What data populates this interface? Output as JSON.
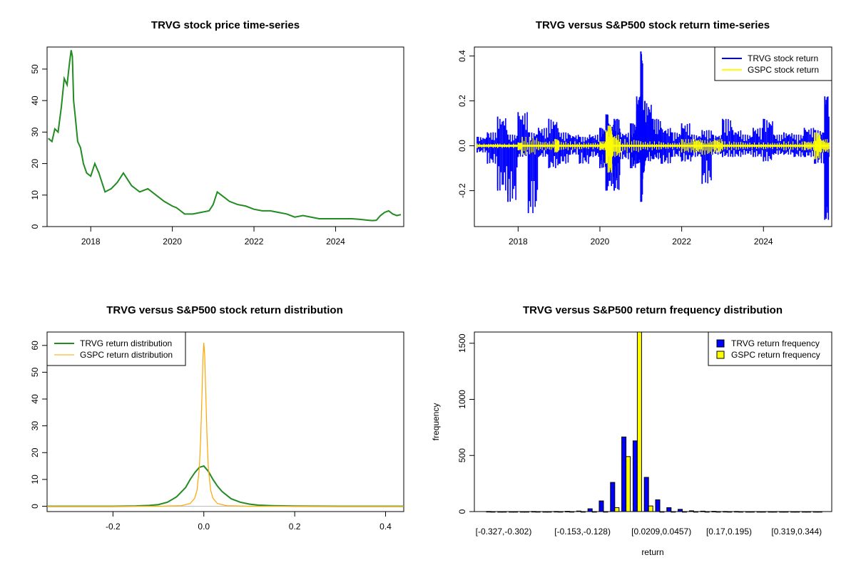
{
  "chart_data": [
    {
      "type": "line",
      "title": "TRVG stock price time-series",
      "xlabel": "",
      "ylabel": "",
      "xlim": [
        2016.93,
        2025.67
      ],
      "ylim": [
        0,
        57
      ],
      "x_ticks": [
        "2018",
        "2020",
        "2022",
        "2024"
      ],
      "y_ticks": [
        "0",
        "10",
        "20",
        "30",
        "40",
        "50"
      ],
      "series": [
        {
          "color": "#228B22",
          "x": [
            2016.96,
            2017.05,
            2017.12,
            2017.2,
            2017.28,
            2017.35,
            2017.42,
            2017.48,
            2017.52,
            2017.55,
            2017.58,
            2017.62,
            2017.68,
            2017.75,
            2017.82,
            2017.9,
            2018.0,
            2018.1,
            2018.2,
            2018.35,
            2018.5,
            2018.65,
            2018.8,
            2019.0,
            2019.2,
            2019.4,
            2019.6,
            2019.8,
            2020.0,
            2020.1,
            2020.2,
            2020.3,
            2020.5,
            2020.7,
            2020.9,
            2021.0,
            2021.1,
            2021.2,
            2021.4,
            2021.6,
            2021.8,
            2022.0,
            2022.2,
            2022.4,
            2022.6,
            2022.8,
            2023.0,
            2023.2,
            2023.4,
            2023.6,
            2023.8,
            2024.0,
            2024.2,
            2024.4,
            2024.6,
            2024.8,
            2024.9,
            2025.0,
            2025.1,
            2025.2,
            2025.3,
            2025.4,
            2025.5,
            2025.6
          ],
          "y": [
            28,
            27,
            31,
            30,
            38,
            47,
            45,
            52,
            56,
            54,
            40,
            35,
            27,
            25,
            20,
            17,
            16,
            20,
            17,
            11,
            12,
            14,
            17,
            13,
            11,
            12,
            10,
            8,
            6.5,
            6,
            5,
            4,
            4,
            4.5,
            5,
            7,
            11,
            10,
            8,
            7,
            6.5,
            5.5,
            5,
            5,
            4.5,
            4,
            3,
            3.5,
            3,
            2.5,
            2.5,
            2.5,
            2.5,
            2.5,
            2.3,
            2,
            1.9,
            2,
            3.5,
            4.5,
            5,
            4,
            3.5,
            3.8
          ]
        }
      ]
    },
    {
      "type": "line",
      "title": "TRVG versus S&P500 stock return time-series",
      "xlabel": "",
      "ylabel": "",
      "xlim": [
        2016.93,
        2025.67
      ],
      "ylim": [
        -0.36,
        0.44
      ],
      "x_ticks": [
        "2018",
        "2020",
        "2022",
        "2024"
      ],
      "y_ticks": [
        "-0.2",
        "0.0",
        "0.2",
        "0.4"
      ],
      "legend": "top-right",
      "series": [
        {
          "name": "TRVG stock return",
          "color": "#0000FF",
          "x": [
            2017.0,
            2017.25,
            2017.5,
            2017.75,
            2018.0,
            2018.25,
            2018.5,
            2018.75,
            2019.0,
            2019.25,
            2019.5,
            2019.75,
            2020.0,
            2020.15,
            2020.2,
            2020.35,
            2020.5,
            2020.75,
            2020.9,
            2021.0,
            2021.05,
            2021.1,
            2021.3,
            2021.5,
            2021.75,
            2022.0,
            2022.25,
            2022.5,
            2022.75,
            2023.0,
            2023.25,
            2023.5,
            2023.75,
            2024.0,
            2024.25,
            2024.5,
            2024.75,
            2025.0,
            2025.25,
            2025.5,
            2025.6
          ],
          "y_high": [
            0.04,
            0.06,
            0.13,
            0.05,
            0.15,
            0.06,
            0.08,
            0.12,
            0.06,
            0.05,
            0.04,
            0.05,
            0.08,
            0.14,
            0.1,
            0.12,
            0.06,
            0.1,
            0.22,
            0.42,
            0.16,
            0.2,
            0.12,
            0.08,
            0.06,
            0.1,
            0.05,
            0.07,
            0.05,
            0.12,
            0.07,
            0.05,
            0.08,
            0.12,
            0.05,
            0.06,
            0.05,
            0.08,
            0.07,
            0.22,
            0.13
          ],
          "y_low": [
            -0.03,
            -0.08,
            -0.2,
            -0.25,
            -0.05,
            -0.3,
            -0.05,
            -0.1,
            -0.08,
            -0.04,
            -0.08,
            -0.05,
            -0.1,
            -0.2,
            -0.18,
            -0.2,
            -0.06,
            -0.1,
            -0.08,
            -0.25,
            -0.12,
            -0.07,
            -0.06,
            -0.08,
            -0.05,
            -0.07,
            -0.05,
            -0.17,
            -0.04,
            -0.05,
            -0.05,
            -0.04,
            -0.05,
            -0.07,
            -0.04,
            -0.04,
            -0.05,
            -0.05,
            -0.08,
            -0.33,
            -0.05
          ]
        },
        {
          "name": "GSPC stock return",
          "color": "#FFFF00",
          "x": [
            2017.0,
            2017.5,
            2018.0,
            2018.1,
            2018.5,
            2018.9,
            2019.0,
            2019.5,
            2020.0,
            2020.15,
            2020.2,
            2020.3,
            2020.5,
            2021.0,
            2021.5,
            2022.0,
            2022.3,
            2022.5,
            2022.8,
            2023.0,
            2023.5,
            2024.0,
            2024.5,
            2025.0,
            2025.25,
            2025.4,
            2025.6
          ],
          "y_high": [
            0.01,
            0.01,
            0.015,
            0.04,
            0.02,
            0.03,
            0.02,
            0.015,
            0.02,
            0.07,
            0.09,
            0.05,
            0.03,
            0.02,
            0.015,
            0.03,
            0.03,
            0.025,
            0.03,
            0.02,
            0.015,
            0.015,
            0.02,
            0.02,
            0.06,
            0.03,
            0.015
          ],
          "y_low": [
            -0.01,
            -0.01,
            -0.02,
            -0.04,
            -0.02,
            -0.03,
            -0.02,
            -0.015,
            -0.02,
            -0.08,
            -0.12,
            -0.05,
            -0.03,
            -0.02,
            -0.015,
            -0.03,
            -0.03,
            -0.04,
            -0.03,
            -0.02,
            -0.015,
            -0.015,
            -0.02,
            -0.02,
            -0.06,
            -0.03,
            -0.015
          ]
        }
      ]
    },
    {
      "type": "line",
      "title": "TRVG versus S&P500 stock return distribution",
      "xlabel": "",
      "ylabel": "",
      "xlim": [
        -0.345,
        0.44
      ],
      "ylim": [
        -2,
        65
      ],
      "x_ticks": [
        "-0.2",
        "0.0",
        "0.2",
        "0.4"
      ],
      "y_ticks": [
        "0",
        "10",
        "20",
        "30",
        "40",
        "50",
        "60"
      ],
      "legend": "top-left",
      "series": [
        {
          "name": "TRVG return distribution",
          "color": "#228B22",
          "x": [
            -0.345,
            -0.2,
            -0.15,
            -0.12,
            -0.1,
            -0.08,
            -0.06,
            -0.04,
            -0.03,
            -0.02,
            -0.01,
            0.0,
            0.01,
            0.02,
            0.03,
            0.04,
            0.06,
            0.08,
            0.1,
            0.12,
            0.15,
            0.2,
            0.3,
            0.44
          ],
          "y": [
            0,
            0,
            0.1,
            0.3,
            0.6,
            1.5,
            3.5,
            7,
            10,
            12.5,
            14.5,
            15,
            13,
            10,
            7.5,
            5.5,
            2.8,
            1.5,
            0.8,
            0.4,
            0.2,
            0.05,
            0,
            0
          ]
        },
        {
          "name": "GSPC return distribution",
          "color": "#FFA500",
          "x": [
            -0.345,
            -0.1,
            -0.05,
            -0.03,
            -0.02,
            -0.015,
            -0.01,
            -0.007,
            -0.004,
            -0.002,
            0.0,
            0.002,
            0.004,
            0.007,
            0.01,
            0.015,
            0.02,
            0.03,
            0.05,
            0.1,
            0.44
          ],
          "y": [
            0,
            0,
            0.2,
            1,
            3,
            6,
            14,
            25,
            42,
            55,
            61,
            56,
            44,
            26,
            14,
            6,
            3,
            1,
            0.2,
            0,
            0
          ]
        }
      ]
    },
    {
      "type": "bar",
      "title": "TRVG versus S&P500 return frequency distribution",
      "xlabel": "return",
      "ylabel": "frequency",
      "ylim": [
        0,
        1600
      ],
      "y_ticks": [
        "0",
        "500",
        "1000",
        "1500"
      ],
      "x_tick_labels": [
        "[-0.327,-0.302)",
        "[-0.153,-0.128)",
        "[0.0209,0.0457)",
        "[0.17,0.195)",
        "[0.319,0.344)"
      ],
      "x_tick_bins": [
        0,
        7,
        14,
        20,
        26
      ],
      "legend": "top-right",
      "series": [
        {
          "name": "TRVG return frequency",
          "color": "#0000FF",
          "values": [
            1,
            0,
            0,
            0,
            1,
            0,
            1,
            2,
            5,
            25,
            95,
            260,
            665,
            630,
            305,
            105,
            35,
            20,
            7,
            4,
            2,
            1,
            1,
            0,
            0,
            0,
            0,
            0,
            0,
            0
          ]
        },
        {
          "name": "GSPC return frequency",
          "color": "#FFFF00",
          "values": [
            0,
            0,
            0,
            0,
            0,
            0,
            0,
            0,
            0,
            0,
            0,
            35,
            490,
            1600,
            50,
            0,
            0,
            0,
            0,
            0,
            0,
            0,
            0,
            0,
            0,
            0,
            0,
            0,
            0,
            0
          ]
        }
      ]
    }
  ]
}
